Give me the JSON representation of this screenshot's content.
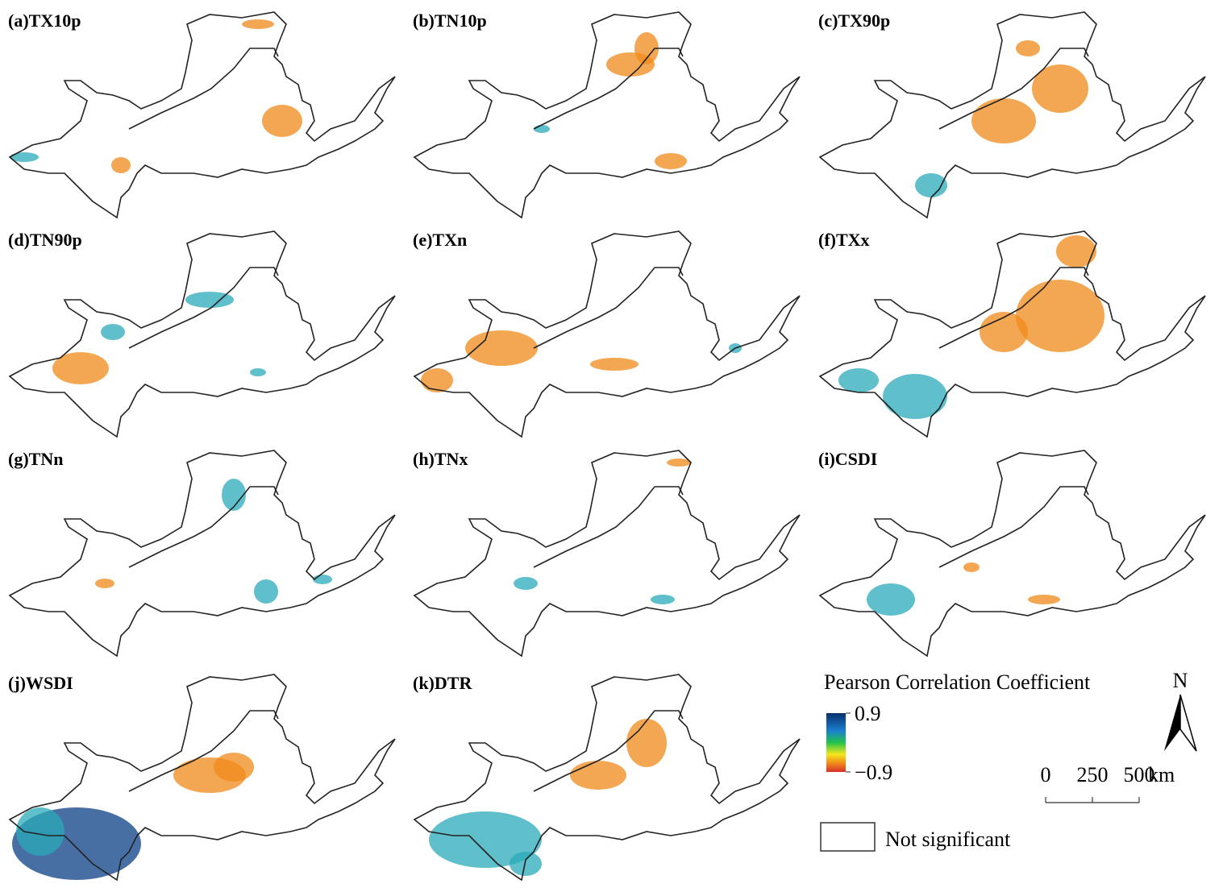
{
  "panels": [
    {
      "label": "(a)TX10p"
    },
    {
      "label": "(b)TN10p"
    },
    {
      "label": "(c)TX90p"
    },
    {
      "label": "(d)TN90p"
    },
    {
      "label": "(e)TXn"
    },
    {
      "label": "(f)TXx"
    },
    {
      "label": "(g)TNn"
    },
    {
      "label": "(h)TNx"
    },
    {
      "label": "(i)CSDI"
    },
    {
      "label": "(j)WSDI"
    },
    {
      "label": "(k)DTR"
    }
  ],
  "legend": {
    "title": "Pearson Correlation Coefficient",
    "ticks": [
      {
        "value": 0.9,
        "label": "0.9"
      },
      {
        "value": -0.9,
        "label": "−0.9"
      }
    ],
    "not_significant": "Not significant"
  },
  "north": "N",
  "scale_bar": {
    "ticks": [
      0,
      250,
      500
    ],
    "unit": "km"
  }
}
